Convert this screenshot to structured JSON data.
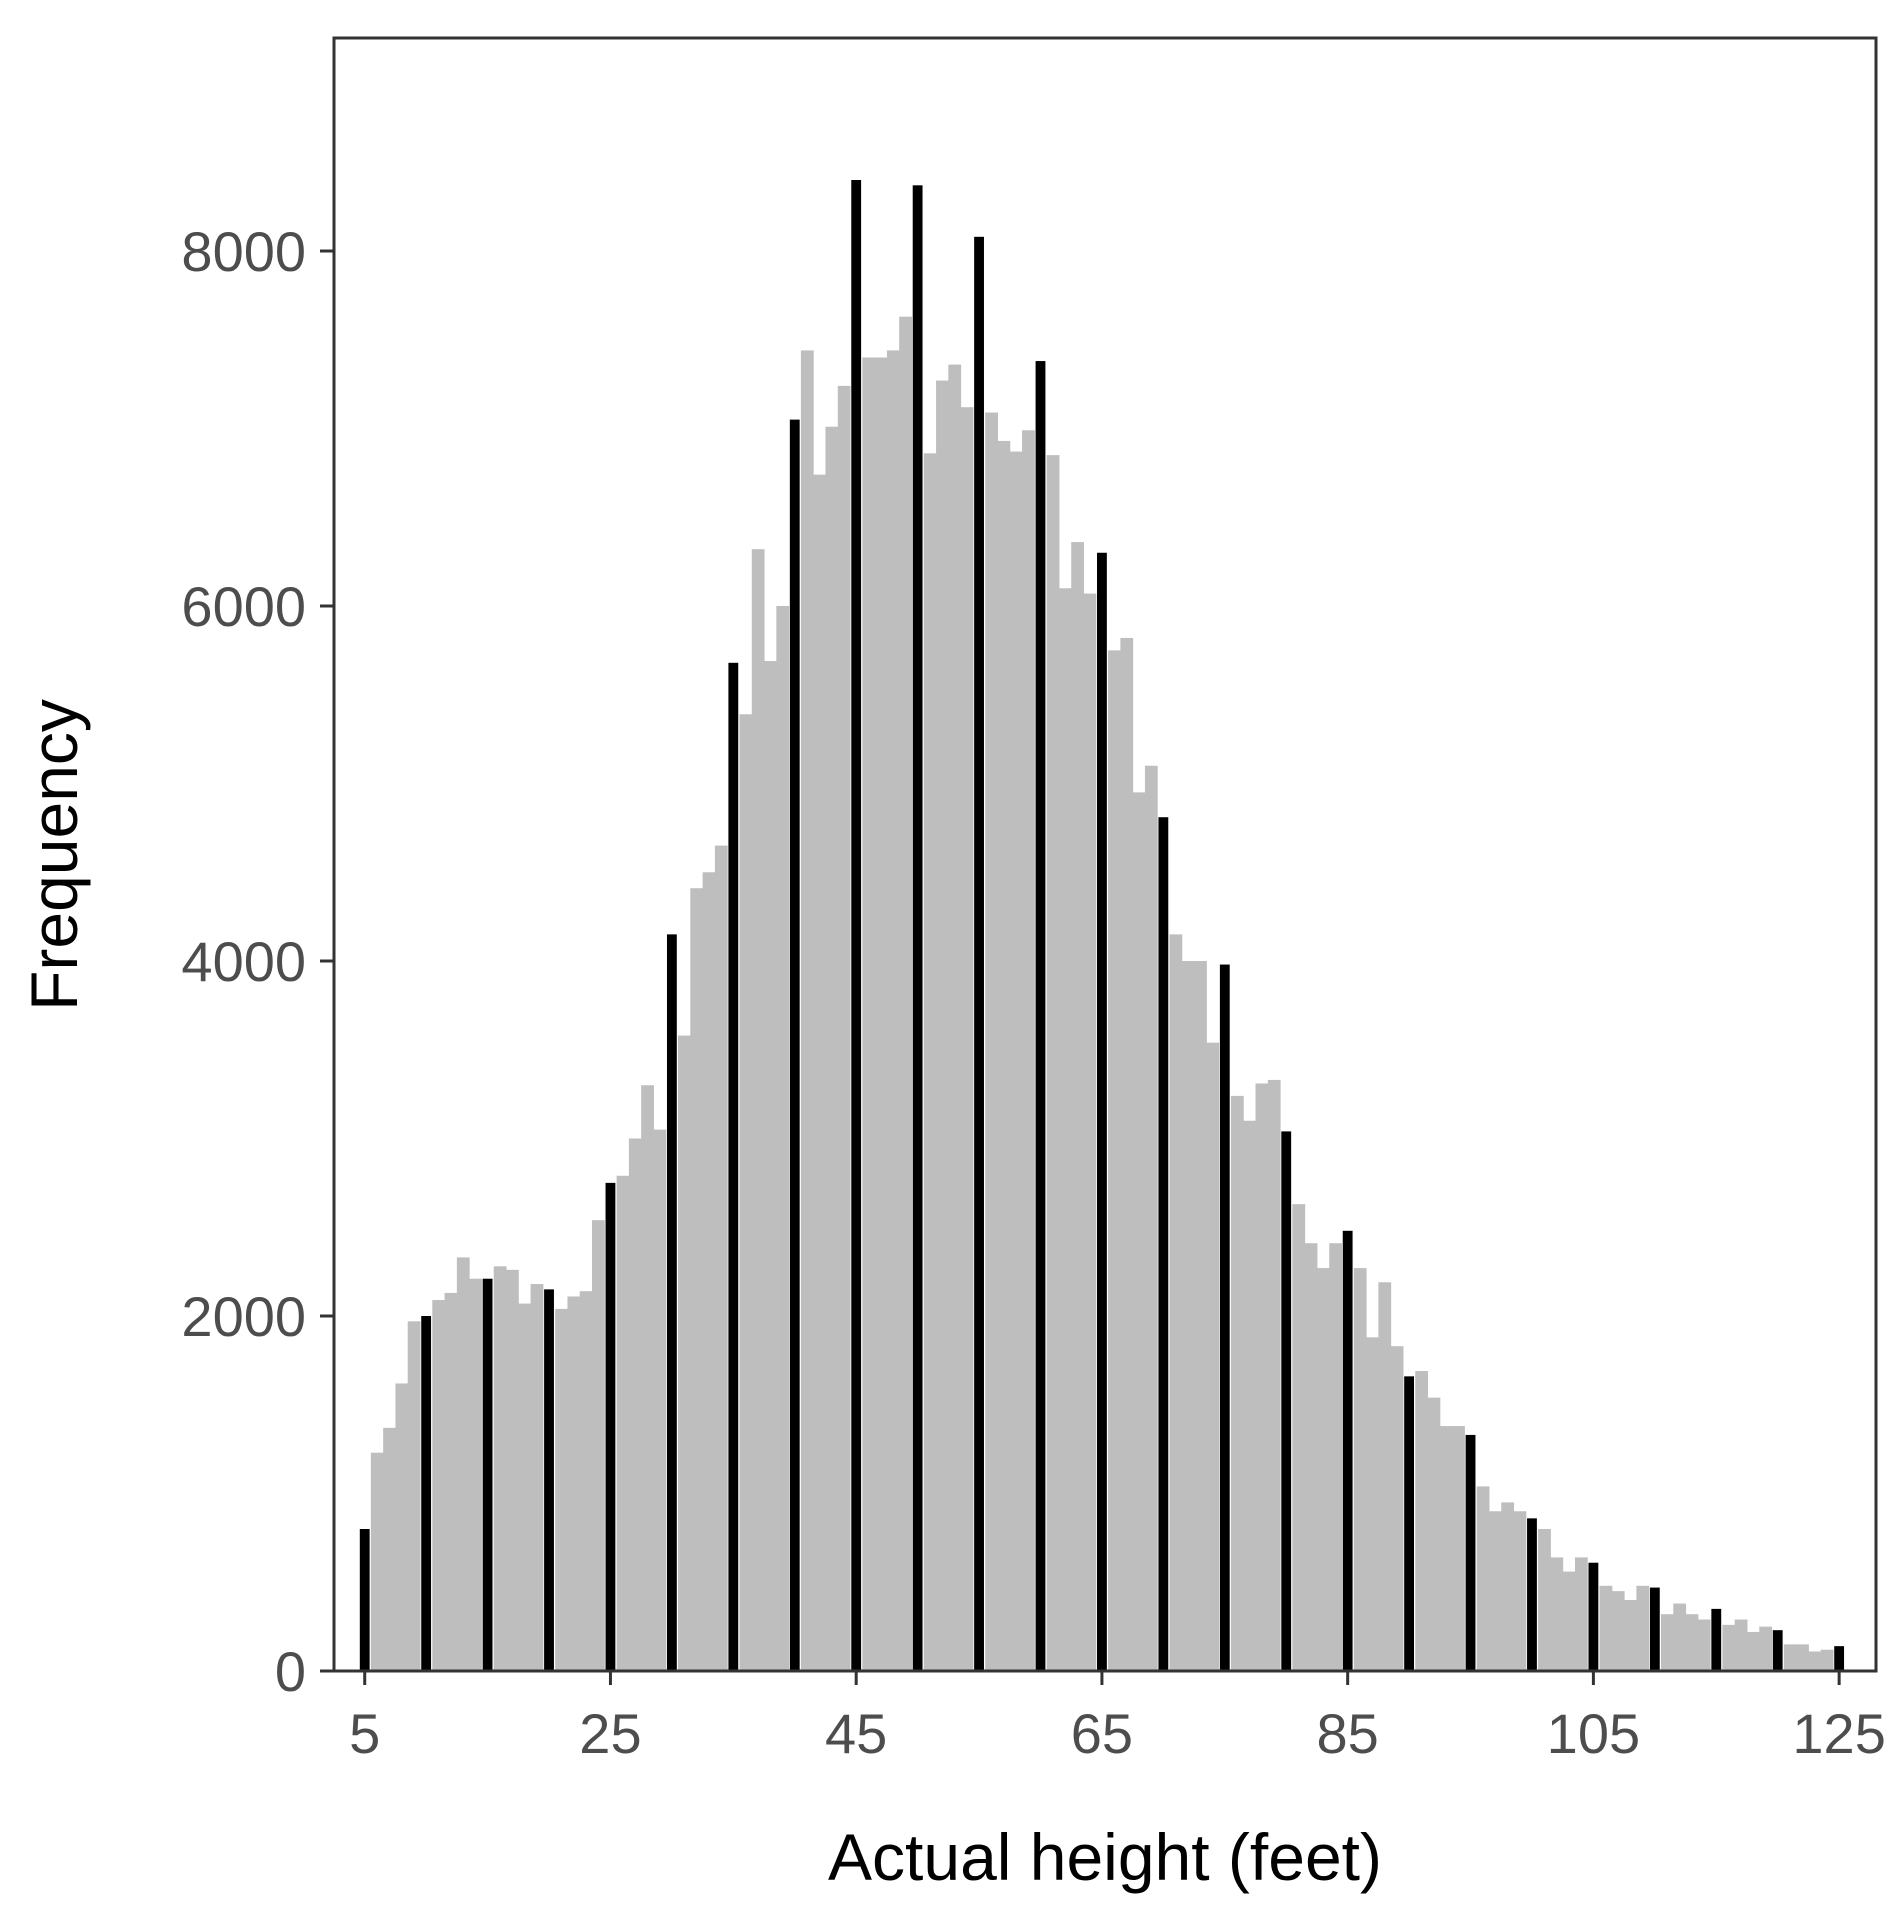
{
  "chart_data": {
    "type": "bar",
    "xlabel": "Actual height (feet)",
    "ylabel": "Frequency",
    "xlim": [
      2.5,
      128
    ],
    "ylim": [
      0,
      9200
    ],
    "x_ticks": [
      5,
      25,
      45,
      65,
      85,
      105,
      125
    ],
    "x_tick_labels": [
      "5",
      "25",
      "45",
      "65",
      "85",
      "105",
      "125"
    ],
    "y_ticks": [
      0,
      2000,
      4000,
      6000,
      8000
    ],
    "y_tick_labels": [
      "0",
      "2000",
      "4000",
      "6000",
      "8000"
    ],
    "grid": false,
    "legend": "none",
    "colors": {
      "fine_bins": "#bebebe",
      "multiples_of_5": "#000000",
      "axis": "#333333",
      "tick_text": "#4d4d4d"
    },
    "series": [
      {
        "x": [
          5,
          6,
          7,
          8,
          9,
          10,
          11,
          12,
          13,
          14,
          15,
          16,
          17,
          18,
          19,
          20,
          21,
          22,
          23,
          24,
          25,
          26,
          27,
          28,
          29,
          30,
          31,
          32,
          33,
          34,
          35,
          36,
          37,
          38,
          39,
          40,
          41,
          42,
          43,
          44,
          45,
          46,
          47,
          48,
          49,
          50,
          51,
          52,
          53,
          54,
          55,
          56,
          57,
          58,
          59,
          60,
          61,
          62,
          63,
          64,
          65,
          66,
          67,
          68,
          69,
          70,
          71,
          72,
          73,
          74,
          75,
          76,
          77,
          78,
          79,
          80,
          81,
          82,
          83,
          84,
          85,
          86,
          87,
          88,
          89,
          90,
          91,
          92,
          93,
          94,
          95,
          96,
          97,
          98,
          99,
          100,
          101,
          102,
          103,
          104,
          105,
          106,
          107,
          108,
          109,
          110,
          111,
          112,
          113,
          114,
          115,
          116,
          117,
          118,
          119,
          120,
          121,
          122,
          123,
          124,
          125
        ],
        "values": [
          800,
          1230,
          1370,
          1620,
          1970,
          2000,
          2090,
          2130,
          2330,
          2210,
          2210,
          2280,
          2260,
          2070,
          2180,
          2150,
          2040,
          2110,
          2140,
          2540,
          2750,
          2790,
          3000,
          3300,
          3050,
          4150,
          3580,
          4410,
          4500,
          4650,
          5680,
          5390,
          6320,
          5690,
          6000,
          7050,
          7440,
          6740,
          7010,
          7240,
          8400,
          7400,
          7400,
          7440,
          7630,
          8370,
          6860,
          7270,
          7360,
          7120,
          8080,
          7090,
          6930,
          6870,
          6990,
          7380,
          6850,
          6100,
          6360,
          6070,
          6300,
          5750,
          5820,
          4950,
          5100,
          4810,
          4150,
          4000,
          4000,
          3540,
          3980,
          3240,
          3100,
          3310,
          3330,
          3040,
          2630,
          2410,
          2270,
          2410,
          2480,
          2270,
          1880,
          2190,
          1830,
          1660,
          1690,
          1540,
          1380,
          1380,
          1330,
          1040,
          900,
          950,
          900,
          860,
          800,
          640,
          560,
          640,
          610,
          480,
          450,
          400,
          480,
          470,
          320,
          380,
          320,
          290,
          350,
          260,
          290,
          220,
          250,
          230,
          150,
          150,
          110,
          120,
          140
        ],
        "highlight_every": 5,
        "highlight_start": 5
      }
    ]
  }
}
